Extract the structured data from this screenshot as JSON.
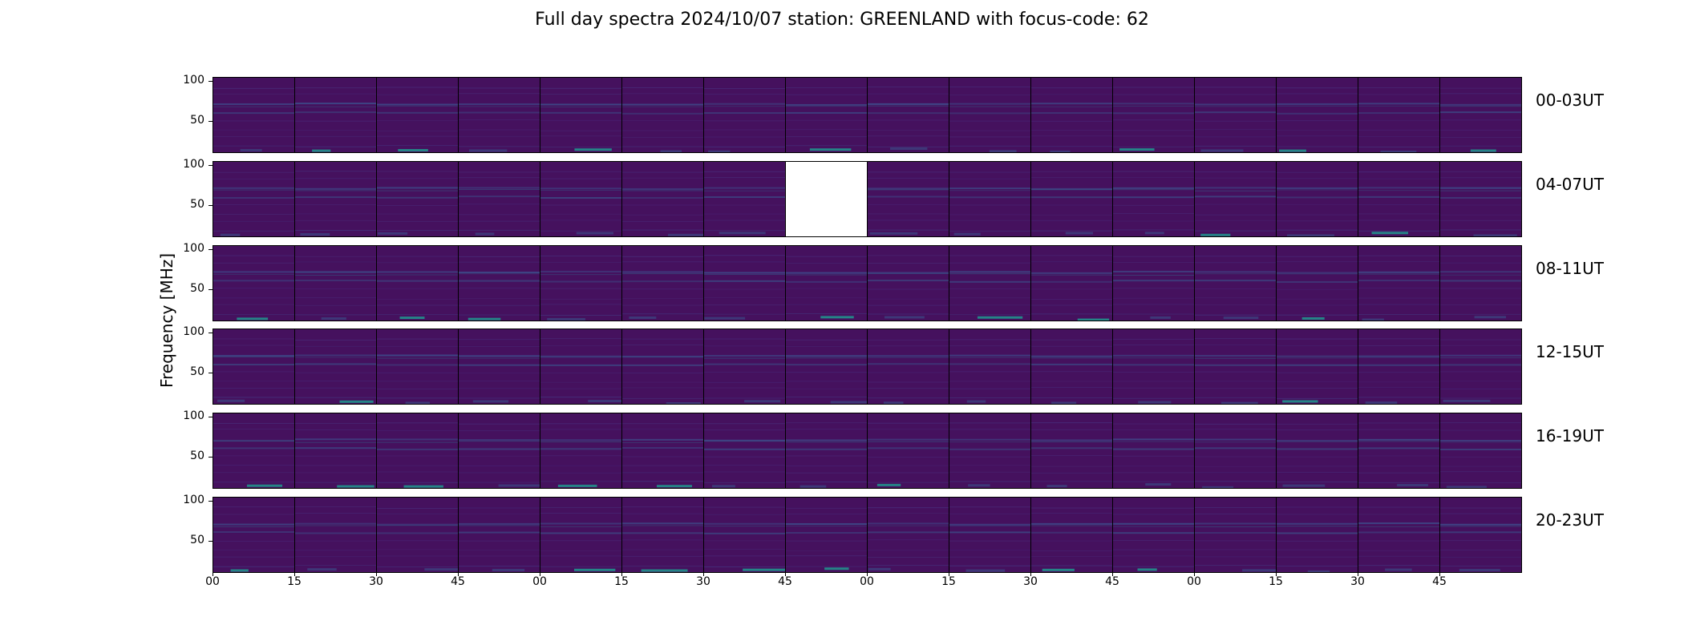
{
  "chart_data": {
    "type": "heatmap",
    "title": "Full day spectra 2024/10/07 station: GREENLAND with focus-code: 62",
    "ylabel": "Frequency [MHz]",
    "xlabel": "",
    "yticks": [
      "50",
      "100"
    ],
    "ylim": [
      10,
      105
    ],
    "xticks": [
      "00",
      "15",
      "30",
      "45",
      "00",
      "15",
      "30",
      "45",
      "00",
      "15",
      "30",
      "45",
      "00",
      "15",
      "30",
      "45"
    ],
    "rows": [
      "00-03UT",
      "04-07UT",
      "08-11UT",
      "12-15UT",
      "16-19UT",
      "20-23UT"
    ],
    "panels_per_row": 16,
    "panel_minutes": 15,
    "missing_panels": [
      {
        "row": "04-07UT",
        "panel": 8
      }
    ],
    "colormap": "viridis",
    "colors": {
      "background": "#45115e",
      "mid": "#3b528b",
      "high": "#21918c",
      "peak": "#a0da39"
    }
  }
}
